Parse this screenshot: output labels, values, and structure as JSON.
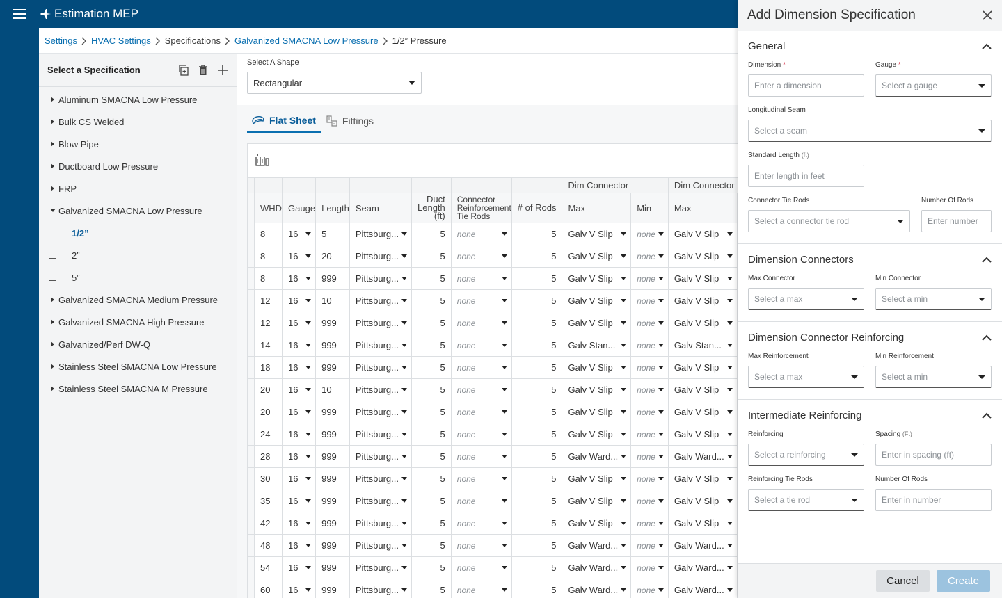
{
  "app": {
    "title": "Estimation MEP"
  },
  "breadcrumb": [
    {
      "label": "Settings",
      "link": true
    },
    {
      "label": "HVAC Settings",
      "link": true
    },
    {
      "label": "Specifications",
      "link": false
    },
    {
      "label": "Galvanized SMACNA Low Pressure",
      "link": true
    },
    {
      "label": "1/2” Pressure",
      "link": false
    }
  ],
  "spec_panel": {
    "title": "Select a Specification",
    "items": [
      {
        "label": "Aluminum SMACNA Low Pressure"
      },
      {
        "label": "Bulk CS Welded"
      },
      {
        "label": "Blow Pipe"
      },
      {
        "label": "Ductboard Low Pressure"
      },
      {
        "label": "FRP"
      },
      {
        "label": "Galvanized SMACNA Low Pressure",
        "expanded": true,
        "children": [
          "1/2”",
          "2”",
          "5”"
        ],
        "active_child": "1/2”"
      },
      {
        "label": "Galvanized SMACNA Medium Pressure"
      },
      {
        "label": "Galvanized SMACNA High Pressure"
      },
      {
        "label": "Galvanized/Perf DW-Q"
      },
      {
        "label": "Stainless Steel SMACNA Low Pressure"
      },
      {
        "label": "Stainless Steel SMACNA M Pressure"
      }
    ]
  },
  "shape": {
    "label": "Select A Shape",
    "value": "Rectangular"
  },
  "tabs": [
    {
      "label": "Flat Sheet",
      "active": true
    },
    {
      "label": "Fittings",
      "active": false
    }
  ],
  "grid": {
    "group_headers": [
      "Dim Connector",
      "Dim Connector"
    ],
    "columns": [
      "WHD",
      "Gauge",
      "Length",
      "Seam",
      "Duct Length (ft)",
      "Connector Reinforcement Tie Rods",
      "# of Rods",
      "Max",
      "Min",
      "Max"
    ],
    "rows": [
      {
        "whd": "8",
        "gauge": "16",
        "length": "5",
        "seam": "Pittsburg...",
        "duct": "5",
        "tie": "none",
        "rods": "5",
        "max": "Galv V Slip",
        "min": "none",
        "max2": "Galv V Slip"
      },
      {
        "whd": "8",
        "gauge": "16",
        "length": "20",
        "seam": "Pittsburg...",
        "duct": "5",
        "tie": "none",
        "rods": "5",
        "max": "Galv V Slip",
        "min": "none",
        "max2": "Galv V Slip"
      },
      {
        "whd": "8",
        "gauge": "16",
        "length": "999",
        "seam": "Pittsburg...",
        "duct": "5",
        "tie": "none",
        "rods": "5",
        "max": "Galv V Slip",
        "min": "none",
        "max2": "Galv V Slip"
      },
      {
        "whd": "12",
        "gauge": "16",
        "length": "10",
        "seam": "Pittsburg...",
        "duct": "5",
        "tie": "none",
        "rods": "5",
        "max": "Galv V Slip",
        "min": "none",
        "max2": "Galv V Slip"
      },
      {
        "whd": "12",
        "gauge": "16",
        "length": "999",
        "seam": "Pittsburg...",
        "duct": "5",
        "tie": "none",
        "rods": "5",
        "max": "Galv V Slip",
        "min": "none",
        "max2": "Galv V Slip"
      },
      {
        "whd": "14",
        "gauge": "16",
        "length": "999",
        "seam": "Pittsburg...",
        "duct": "5",
        "tie": "none",
        "rods": "5",
        "max": "Galv Stan...",
        "min": "none",
        "max2": "Galv Stan..."
      },
      {
        "whd": "18",
        "gauge": "16",
        "length": "999",
        "seam": "Pittsburg...",
        "duct": "5",
        "tie": "none",
        "rods": "5",
        "max": "Galv V Slip",
        "min": "none",
        "max2": "Galv V Slip"
      },
      {
        "whd": "20",
        "gauge": "16",
        "length": "10",
        "seam": "Pittsburg...",
        "duct": "5",
        "tie": "none",
        "rods": "5",
        "max": "Galv V Slip",
        "min": "none",
        "max2": "Galv V Slip"
      },
      {
        "whd": "20",
        "gauge": "16",
        "length": "999",
        "seam": "Pittsburg...",
        "duct": "5",
        "tie": "none",
        "rods": "5",
        "max": "Galv V Slip",
        "min": "none",
        "max2": "Galv V Slip"
      },
      {
        "whd": "24",
        "gauge": "16",
        "length": "999",
        "seam": "Pittsburg...",
        "duct": "5",
        "tie": "none",
        "rods": "5",
        "max": "Galv V Slip",
        "min": "none",
        "max2": "Galv V Slip"
      },
      {
        "whd": "28",
        "gauge": "16",
        "length": "999",
        "seam": "Pittsburg...",
        "duct": "5",
        "tie": "none",
        "rods": "5",
        "max": "Galv Ward...",
        "min": "none",
        "max2": "Galv Ward..."
      },
      {
        "whd": "30",
        "gauge": "16",
        "length": "999",
        "seam": "Pittsburg...",
        "duct": "5",
        "tie": "none",
        "rods": "5",
        "max": "Galv V Slip",
        "min": "none",
        "max2": "Galv V Slip"
      },
      {
        "whd": "35",
        "gauge": "16",
        "length": "999",
        "seam": "Pittsburg...",
        "duct": "5",
        "tie": "none",
        "rods": "5",
        "max": "Galv V Slip",
        "min": "none",
        "max2": "Galv V Slip"
      },
      {
        "whd": "42",
        "gauge": "16",
        "length": "999",
        "seam": "Pittsburg...",
        "duct": "5",
        "tie": "none",
        "rods": "5",
        "max": "Galv V Slip",
        "min": "none",
        "max2": "Galv V Slip"
      },
      {
        "whd": "48",
        "gauge": "16",
        "length": "999",
        "seam": "Pittsburg...",
        "duct": "5",
        "tie": "none",
        "rods": "5",
        "max": "Galv Ward...",
        "min": "none",
        "max2": "Galv Ward..."
      },
      {
        "whd": "54",
        "gauge": "16",
        "length": "999",
        "seam": "Pittsburg...",
        "duct": "5",
        "tie": "none",
        "rods": "5",
        "max": "Galv Ward...",
        "min": "none",
        "max2": "Galv Ward..."
      },
      {
        "whd": "60",
        "gauge": "16",
        "length": "999",
        "seam": "Pittsburg...",
        "duct": "5",
        "tie": "none",
        "rods": "5",
        "max": "Galv Ward...",
        "min": "none",
        "max2": "Galv Ward..."
      }
    ]
  },
  "drawer": {
    "title": "Add Dimension Specification",
    "general": {
      "title": "General",
      "dimension_label": "Dimension",
      "dimension_placeholder": "Enter a dimension",
      "gauge_label": "Gauge",
      "gauge_placeholder": "Select a gauge",
      "seam_label": "Longitudinal Seam",
      "seam_placeholder": "Select a seam",
      "std_length_label": "Standard Length",
      "std_length_unit": "(ft)",
      "std_length_placeholder": "Enter length in feet",
      "tie_rods_label": "Connector Tie Rods",
      "tie_rods_placeholder": "Select a connector tie rod",
      "num_rods_label": "Number Of Rods",
      "num_rods_placeholder": "Enter number"
    },
    "dim_connectors": {
      "title": "Dimension Connectors",
      "max_label": "Max Connector",
      "max_placeholder": "Select a max",
      "min_label": "Min Connector",
      "min_placeholder": "Select a min"
    },
    "dim_reinforcing": {
      "title": "Dimension Connector Reinforcing",
      "max_label": "Max Reinforcement",
      "max_placeholder": "Select a max",
      "min_label": "Min Reinforcement",
      "min_placeholder": "Select a min"
    },
    "inter_reinforcing": {
      "title": "Intermediate Reinforcing",
      "reinf_label": "Reinforcing",
      "reinf_placeholder": "Select a reinforcing",
      "spacing_label": "Spacing",
      "spacing_unit": "(Ft)",
      "spacing_placeholder": "Enter in spacing (ft)",
      "tie_label": "Reinforcing Tie Rods",
      "tie_placeholder": "Select a tie rod",
      "rods_label": "Number Of Rods",
      "rods_placeholder": "Enter in number"
    },
    "cancel_label": "Cancel",
    "create_label": "Create"
  }
}
